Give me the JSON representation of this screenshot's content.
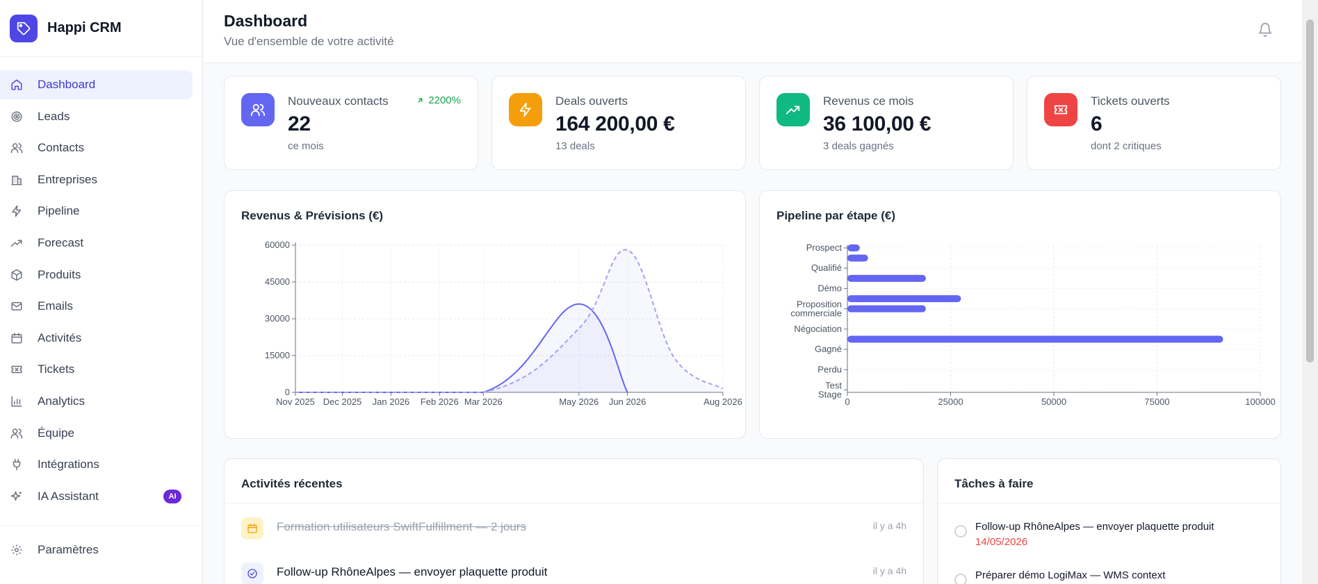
{
  "app": {
    "name": "Happi CRM"
  },
  "sidebar": {
    "items": [
      {
        "label": "Dashboard",
        "icon": "home-icon",
        "active": true
      },
      {
        "label": "Leads",
        "icon": "target-icon"
      },
      {
        "label": "Contacts",
        "icon": "users-icon"
      },
      {
        "label": "Entreprises",
        "icon": "building-icon"
      },
      {
        "label": "Pipeline",
        "icon": "zap-icon"
      },
      {
        "label": "Forecast",
        "icon": "trending-up-icon"
      },
      {
        "label": "Produits",
        "icon": "package-icon"
      },
      {
        "label": "Emails",
        "icon": "mail-icon"
      },
      {
        "label": "Activités",
        "icon": "calendar-icon"
      },
      {
        "label": "Tickets",
        "icon": "ticket-icon"
      },
      {
        "label": "Analytics",
        "icon": "bar-chart-icon"
      },
      {
        "label": "Équipe",
        "icon": "team-icon"
      },
      {
        "label": "Intégrations",
        "icon": "plug-icon"
      },
      {
        "label": "IA Assistant",
        "icon": "sparkles-icon",
        "badge": "AI"
      }
    ],
    "footer": {
      "label": "Paramètres",
      "icon": "settings-icon"
    }
  },
  "header": {
    "title": "Dashboard",
    "subtitle": "Vue d'ensemble de votre activité"
  },
  "stats": [
    {
      "label": "Nouveaux contacts",
      "value": "22",
      "sub": "ce mois",
      "trend": "2200%",
      "icon": "users-icon",
      "color": "#6366f1"
    },
    {
      "label": "Deals ouverts",
      "value": "164 200,00 €",
      "sub": "13 deals",
      "icon": "zap-icon",
      "color": "#f59e0b"
    },
    {
      "label": "Revenus ce mois",
      "value": "36 100,00 €",
      "sub": "3 deals gagnés",
      "icon": "trending-up-icon",
      "color": "#10b981"
    },
    {
      "label": "Tickets ouverts",
      "value": "6",
      "sub": "dont 2 critiques",
      "icon": "ticket-icon",
      "color": "#ef4444"
    }
  ],
  "chart_data": [
    {
      "type": "area",
      "title": "Revenus & Prévisions (€)",
      "x_tick_labels": [
        "Nov 2025",
        "Dec 2025",
        "Jan 2026",
        "Feb 2026",
        "Mar 2026",
        "May 2026",
        "Jun 2026",
        "Aug 2026"
      ],
      "ylim": [
        0,
        60000
      ],
      "y_ticks": [
        0,
        15000,
        30000,
        45000,
        60000
      ],
      "grid": true,
      "series": [
        {
          "style": "solid",
          "color": "#6366f1",
          "points": [
            [
              "2025-11-01",
              0
            ],
            [
              "2026-03-01",
              0
            ],
            [
              "2026-05-01",
              36000
            ],
            [
              "2026-06-01",
              0
            ]
          ]
        },
        {
          "style": "dashed",
          "color": "#a5a0f2",
          "points": [
            [
              "2025-11-01",
              0
            ],
            [
              "2026-03-01",
              0
            ],
            [
              "2026-05-01",
              26000
            ],
            [
              "2026-06-01",
              58000
            ],
            [
              "2026-07-01",
              14000
            ],
            [
              "2026-08-01",
              1500
            ]
          ]
        }
      ]
    },
    {
      "type": "bar",
      "orientation": "horizontal",
      "title": "Pipeline par étape (€)",
      "categories": [
        "Prospect",
        "Qualifié",
        "Démo",
        "Proposition commerciale",
        "Négociation",
        "Gagné",
        "Perdu",
        "Test Stage"
      ],
      "xlim": [
        0,
        100000
      ],
      "x_ticks": [
        0,
        25000,
        50000,
        75000,
        100000
      ],
      "grid": true,
      "color": "#6366f1",
      "bars": [
        {
          "slot": 0.0,
          "value": 3000
        },
        {
          "slot": 0.5,
          "value": 5000
        },
        {
          "slot": 1.5,
          "value": 19000
        },
        {
          "slot": 2.5,
          "value": 27500
        },
        {
          "slot": 3.0,
          "value": 19000
        },
        {
          "slot": 4.5,
          "value": 91000
        }
      ]
    }
  ],
  "activities": {
    "title": "Activités récentes",
    "items": [
      {
        "text": "Formation utilisateurs SwiftFulfillment — 2 jours",
        "time": "il y a 4h",
        "done": true,
        "icon": "calendar-icon"
      },
      {
        "text": "Follow-up RhôneAlpes — envoyer plaquette produit",
        "time": "il y a 4h",
        "done": false,
        "icon": "check-circle-icon"
      }
    ]
  },
  "tasks": {
    "title": "Tâches à faire",
    "items": [
      {
        "text": "Follow-up RhôneAlpes — envoyer plaquette produit",
        "date": "14/05/2026"
      },
      {
        "text": "Préparer démo LogiMax — WMS context",
        "date": ""
      }
    ]
  }
}
